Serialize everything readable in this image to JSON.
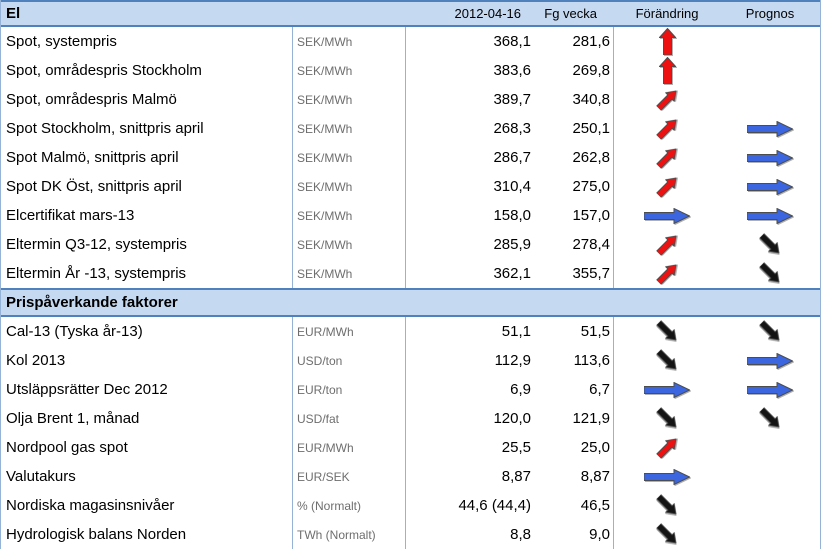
{
  "colors": {
    "band_bg": "#c5d9f1",
    "band_border": "#4f81bd",
    "grid_border": "#95b3d7",
    "arrow_red": "#ee1111",
    "arrow_blue": "#3b66e0",
    "arrow_black": "#141414",
    "arrow_outline": "#4d4d4d",
    "unit_text": "#6e6e6e"
  },
  "header": {
    "title": "El",
    "date_col": "2012-04-16",
    "prev_col": "Fg vecka",
    "change_col": "Förändring",
    "forecast_col": "Prognos"
  },
  "sections": [
    {
      "rows": [
        {
          "name": "Spot, systempris",
          "unit": "SEK/MWh",
          "current": "368,1",
          "prev_week": "281,6",
          "change": "up",
          "forecast": null
        },
        {
          "name": "Spot, områdespris Stockholm",
          "unit": "SEK/MWh",
          "current": "383,6",
          "prev_week": "269,8",
          "change": "up",
          "forecast": null
        },
        {
          "name": "Spot, områdespris Malmö",
          "unit": "SEK/MWh",
          "current": "389,7",
          "prev_week": "340,8",
          "change": "up-right",
          "forecast": null
        },
        {
          "name": "Spot Stockholm, snittpris april",
          "unit": "SEK/MWh",
          "current": "268,3",
          "prev_week": "250,1",
          "change": "up-right",
          "forecast": "right"
        },
        {
          "name": "Spot Malmö, snittpris april",
          "unit": "SEK/MWh",
          "current": "286,7",
          "prev_week": "262,8",
          "change": "up-right",
          "forecast": "right"
        },
        {
          "name": "Spot DK Öst, snittpris april",
          "unit": "SEK/MWh",
          "current": "310,4",
          "prev_week": "275,0",
          "change": "up-right",
          "forecast": "right"
        },
        {
          "name": "Elcertifikat mars-13",
          "unit": "SEK/MWh",
          "current": "158,0",
          "prev_week": "157,0",
          "change": "right",
          "forecast": "right"
        },
        {
          "name": "Eltermin Q3-12, systempris",
          "unit": "SEK/MWh",
          "current": "285,9",
          "prev_week": "278,4",
          "change": "up-right",
          "forecast": "down-right"
        },
        {
          "name": "Eltermin År -13, systempris",
          "unit": "SEK/MWh",
          "current": "362,1",
          "prev_week": "355,7",
          "change": "up-right",
          "forecast": "down-right"
        }
      ]
    },
    {
      "title": "Prispåverkande faktorer",
      "rows": [
        {
          "name": "Cal-13 (Tyska år-13)",
          "unit": "EUR/MWh",
          "current": "51,1",
          "prev_week": "51,5",
          "change": "down-right",
          "forecast": "down-right"
        },
        {
          "name": "Kol 2013",
          "unit": "USD/ton",
          "current": "112,9",
          "prev_week": "113,6",
          "change": "down-right",
          "forecast": "right"
        },
        {
          "name": "Utsläppsrätter Dec 2012",
          "unit": "EUR/ton",
          "current": "6,9",
          "prev_week": "6,7",
          "change": "right",
          "forecast": "right"
        },
        {
          "name": "Olja Brent 1, månad",
          "unit": "USD/fat",
          "current": "120,0",
          "prev_week": "121,9",
          "change": "down-right",
          "forecast": "down-right"
        },
        {
          "name": "Nordpool gas spot",
          "unit": "EUR/MWh",
          "current": "25,5",
          "prev_week": "25,0",
          "change": "up-right",
          "forecast": null
        },
        {
          "name": "Valutakurs",
          "unit": "EUR/SEK",
          "current": "8,87",
          "prev_week": "8,87",
          "change": "right",
          "forecast": null
        },
        {
          "name": "Nordiska magasinsnivåer",
          "unit": "% (Normalt)",
          "current": "44,6 (44,4)",
          "prev_week": "46,5",
          "change": "down-right",
          "forecast": null
        },
        {
          "name": "Hydrologisk balans Norden",
          "unit": "TWh (Normalt)",
          "current": "8,8",
          "prev_week": "9,0",
          "change": "down-right",
          "forecast": null
        }
      ]
    }
  ]
}
